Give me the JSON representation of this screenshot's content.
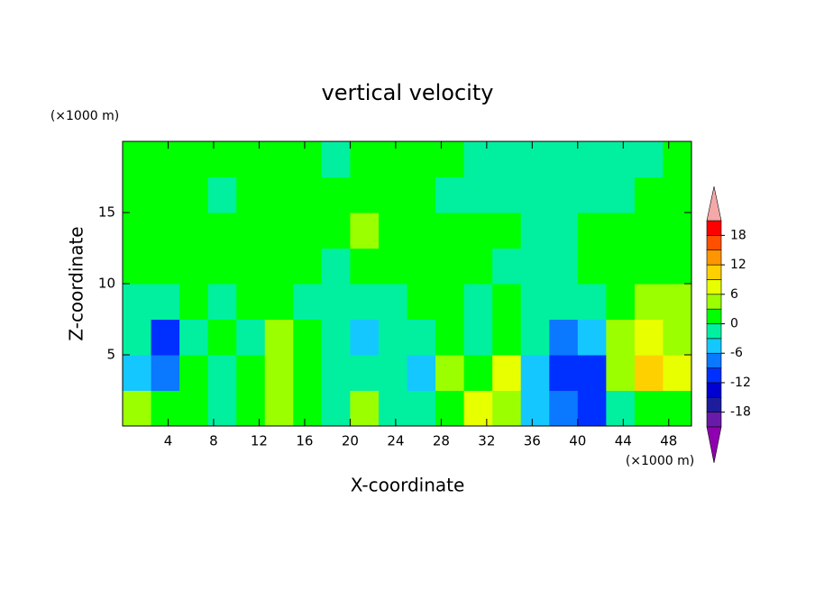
{
  "chart_data": {
    "type": "contour",
    "title": "vertical velocity",
    "xlabel": "X-coordinate",
    "ylabel": "Z-coordinate",
    "x_unit_label": "(×1000 m)",
    "y_unit_label": "(×1000 m)",
    "xlim": [
      0,
      50
    ],
    "ylim": [
      0,
      20
    ],
    "xticks": [
      4,
      8,
      12,
      16,
      20,
      24,
      28,
      32,
      36,
      40,
      44,
      48
    ],
    "yticks": [
      5,
      10,
      15
    ],
    "x": [
      1.25,
      3.75,
      6.25,
      8.75,
      11.25,
      13.75,
      16.25,
      18.75,
      21.25,
      23.75,
      26.25,
      28.75,
      31.25,
      33.75,
      36.25,
      38.75,
      41.25,
      43.75,
      46.25,
      48.75
    ],
    "y": [
      1.25,
      3.75,
      6.25,
      8.75,
      11.25,
      13.75,
      16.25,
      18.75
    ],
    "values": [
      [
        4,
        1,
        2,
        -2,
        1,
        4,
        0,
        -1,
        3,
        -1,
        -2,
        1,
        6,
        5,
        -4,
        -9,
        -10,
        -2,
        2,
        1
      ],
      [
        -4,
        -8,
        1,
        -1,
        2,
        5,
        1,
        -2,
        -1,
        -2,
        -5,
        3,
        2,
        7,
        -4,
        -12,
        -11,
        3,
        10,
        6
      ],
      [
        -3,
        -10,
        -2,
        1,
        -1,
        3,
        1,
        -3,
        -4,
        -1,
        -2,
        1,
        -1,
        2,
        -3,
        -7,
        -6,
        4,
        7,
        5
      ],
      [
        -2,
        -3,
        1,
        -1,
        1,
        2,
        -1,
        -3,
        -2,
        -1,
        0,
        1,
        -2,
        0,
        -1,
        -2,
        -3,
        2,
        5,
        3
      ],
      [
        1,
        0,
        1,
        0,
        1,
        1,
        0,
        -1,
        0,
        1,
        0,
        1,
        0,
        -1,
        -1,
        -1,
        0,
        1,
        1,
        1
      ],
      [
        1,
        1,
        2,
        1,
        1,
        0,
        1,
        1,
        4,
        1,
        0,
        1,
        1,
        0,
        -1,
        -1,
        0,
        1,
        1,
        1
      ],
      [
        1,
        1,
        1,
        -1,
        1,
        1,
        1,
        1,
        1,
        1,
        1,
        -1,
        -1,
        -1,
        -1,
        -1,
        -1,
        -1,
        1,
        1
      ],
      [
        1,
        1,
        1,
        1,
        1,
        1,
        1,
        -1,
        1,
        1,
        1,
        1,
        -1,
        -1,
        -1,
        -1,
        -1,
        -1,
        -1,
        1
      ]
    ],
    "levels": [
      -21,
      -18,
      -15,
      -12,
      -9,
      -6,
      -3,
      0,
      3,
      6,
      9,
      12,
      15,
      18,
      21
    ],
    "colors": [
      "#6a1aa8",
      "#1c1c9c",
      "#0000d0",
      "#0030ff",
      "#0a78ff",
      "#14c8ff",
      "#00f0a0",
      "#00ff00",
      "#9cff00",
      "#e8ff00",
      "#ffd000",
      "#ff9600",
      "#ff5000",
      "#ff0000"
    ],
    "under_color": "#9000b0",
    "over_color": "#f4a8a8",
    "colorbar_ticks": [
      -18,
      -12,
      -6,
      0,
      6,
      12,
      18
    ]
  }
}
